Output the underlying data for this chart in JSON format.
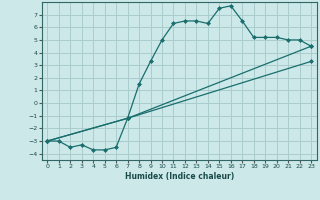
{
  "xlabel": "Humidex (Indice chaleur)",
  "background_color": "#cce8e8",
  "grid_color": "#aacccc",
  "line_color": "#1a6e6e",
  "xlim": [
    -0.5,
    23.5
  ],
  "ylim": [
    -4.5,
    8.0
  ],
  "xticks": [
    0,
    1,
    2,
    3,
    4,
    5,
    6,
    7,
    8,
    9,
    10,
    11,
    12,
    13,
    14,
    15,
    16,
    17,
    18,
    19,
    20,
    21,
    22,
    23
  ],
  "yticks": [
    -4,
    -3,
    -2,
    -1,
    0,
    1,
    2,
    3,
    4,
    5,
    6,
    7
  ],
  "series0_x": [
    0,
    1,
    2,
    3,
    4,
    5,
    6,
    7,
    8,
    9,
    10,
    11,
    12,
    13,
    14,
    15,
    16,
    17,
    18,
    19,
    20,
    21,
    22,
    23
  ],
  "series0_y": [
    -3.0,
    -3.0,
    -3.5,
    -3.3,
    -3.7,
    -3.7,
    -3.5,
    -1.2,
    1.5,
    3.3,
    5.0,
    6.3,
    6.5,
    6.5,
    6.3,
    7.5,
    7.7,
    6.5,
    5.2,
    5.2,
    5.2,
    5.0,
    5.0,
    4.5
  ],
  "series1_x": [
    0,
    7,
    23
  ],
  "series1_y": [
    -3.0,
    -1.2,
    4.5
  ],
  "series2_x": [
    0,
    7,
    23
  ],
  "series2_y": [
    -3.0,
    -1.2,
    3.3
  ]
}
